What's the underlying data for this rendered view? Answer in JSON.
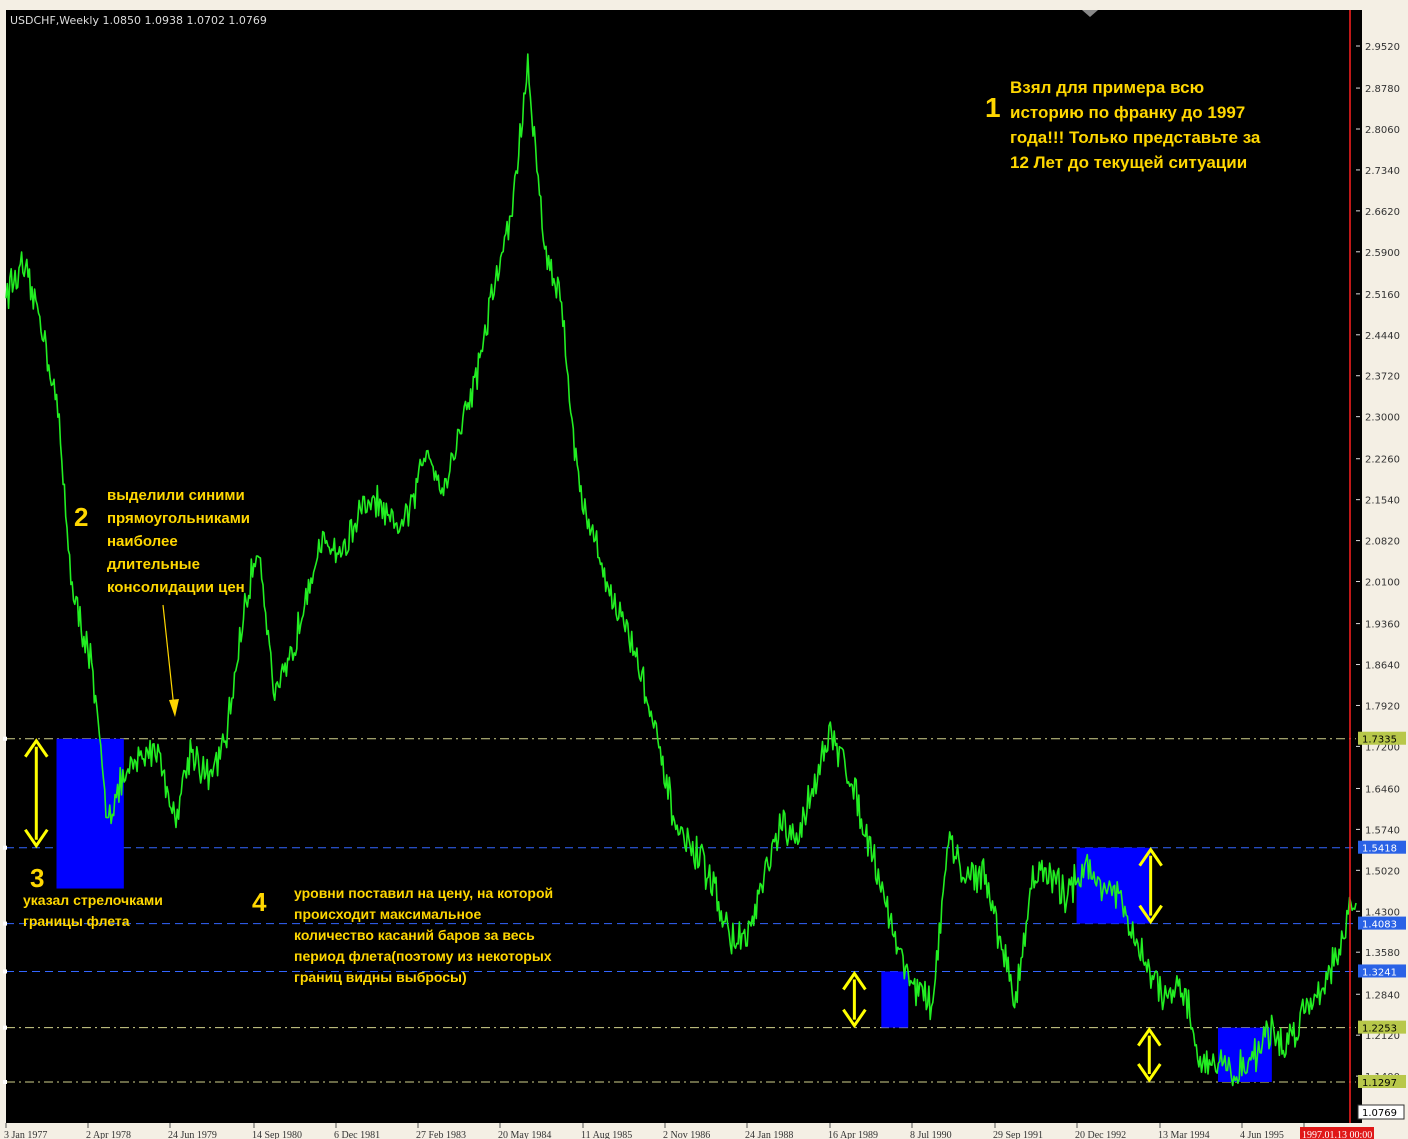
{
  "header": {
    "symbol_label": "USDCHF,Weekly  1.0850 1.0938 1.0702 1.0769"
  },
  "colors": {
    "background": "#000000",
    "price_line": "#22ee22",
    "annotation_text": "#ffd700",
    "consolidation_box": "#0000ff",
    "level_yellow": "#d2d28c",
    "level_blue": "#3366ff",
    "axis_text": "#dddddd",
    "current_line": "#ff2020",
    "last_price_box": "#ffffff"
  },
  "chart_data": {
    "type": "line",
    "title": "",
    "xlabel": "",
    "ylabel": "",
    "ylim": [
      1.0769,
      2.952
    ],
    "price_ticks": [
      "2.9520",
      "2.8780",
      "2.8060",
      "2.7340",
      "2.6620",
      "2.5900",
      "2.5160",
      "2.4440",
      "2.3720",
      "2.3000",
      "2.2260",
      "2.1540",
      "2.0820",
      "2.0100",
      "1.9360",
      "1.8640",
      "1.7920",
      "1.7200",
      "1.6460",
      "1.5740",
      "1.5020",
      "1.4300",
      "1.3580",
      "1.2840",
      "1.2120",
      "1.1400"
    ],
    "time_labels": [
      "3 Jan 1977",
      "2 Apr 1978",
      "24 Jun 1979",
      "14 Sep 1980",
      "6 Dec 1981",
      "27 Feb 1983",
      "20 May 1984",
      "11 Aug 1985",
      "2 Nov 1986",
      "24 Jan 1988",
      "16 Apr 1989",
      "8 Jul 1990",
      "29 Sep 1991",
      "20 Dec 1992",
      "13 Mar 1994",
      "4 Jun 1995",
      "1997.01.13 00:00"
    ],
    "last_price": "1.0769",
    "series": [
      {
        "x": [
          1977.0,
          1977.25,
          1977.5,
          1977.75,
          1978.0,
          1978.25,
          1978.5,
          1978.75,
          1979.0,
          1979.25,
          1979.5,
          1979.75,
          1980.0,
          1980.25,
          1980.5,
          1980.75,
          1981.0,
          1981.25,
          1981.5,
          1981.75,
          1982.0,
          1982.25,
          1982.5,
          1982.75,
          1983.0,
          1983.25,
          1983.5,
          1983.75,
          1984.0,
          1984.25,
          1984.5,
          1984.75,
          1985.0,
          1985.25,
          1985.5,
          1985.75,
          1986.0,
          1986.25,
          1986.5,
          1986.75,
          1987.0,
          1987.25,
          1987.5,
          1987.75,
          1988.0,
          1988.25,
          1988.5,
          1988.75,
          1989.0,
          1989.25,
          1989.5,
          1989.75,
          1990.0,
          1990.25,
          1990.5,
          1990.75,
          1991.0,
          1991.25,
          1991.5,
          1991.75,
          1992.0,
          1992.25,
          1992.5,
          1992.75,
          1993.0,
          1993.25,
          1993.5,
          1993.75,
          1994.0,
          1994.25,
          1994.5,
          1994.75,
          1995.0,
          1995.25,
          1995.5,
          1995.75,
          1996.0,
          1996.25,
          1996.5,
          1996.75,
          1997.0
        ],
        "values": [
          2.52,
          2.56,
          2.48,
          2.33,
          1.98,
          1.88,
          1.6,
          1.66,
          1.7,
          1.72,
          1.59,
          1.72,
          1.66,
          1.72,
          1.93,
          2.08,
          1.8,
          1.88,
          2.02,
          2.08,
          2.06,
          2.13,
          2.15,
          2.1,
          2.13,
          2.25,
          2.17,
          2.28,
          2.38,
          2.53,
          2.65,
          2.91,
          2.6,
          2.5,
          2.18,
          2.08,
          1.98,
          1.92,
          1.82,
          1.68,
          1.56,
          1.53,
          1.48,
          1.38,
          1.38,
          1.48,
          1.58,
          1.55,
          1.66,
          1.74,
          1.68,
          1.58,
          1.48,
          1.36,
          1.3,
          1.26,
          1.55,
          1.49,
          1.5,
          1.39,
          1.27,
          1.5,
          1.49,
          1.46,
          1.51,
          1.48,
          1.46,
          1.38,
          1.32,
          1.27,
          1.29,
          1.16,
          1.17,
          1.14,
          1.17,
          1.22,
          1.19,
          1.25,
          1.29,
          1.35,
          1.44
        ]
      }
    ],
    "consolidation_boxes": [
      {
        "from": "1977.75",
        "to": "1978.75",
        "high": 1.7335,
        "low": 1.47
      },
      {
        "from": "1990.0",
        "to": "1990.4",
        "high": 1.3241,
        "low": 1.2253
      },
      {
        "from": "1992.9",
        "to": "1994.0",
        "high": 1.5418,
        "low": 1.4083
      },
      {
        "from": "1995.0",
        "to": "1995.8",
        "high": 1.2253,
        "low": 1.1297
      }
    ],
    "levels": [
      {
        "value": 1.7335,
        "label": "1.7335",
        "color": "#d2d28c",
        "style": "dash-dot"
      },
      {
        "value": 1.5418,
        "label": "1.5418",
        "color": "#3366ff",
        "style": "dash"
      },
      {
        "value": 1.4083,
        "label": "1.4083",
        "color": "#3366ff",
        "style": "dash"
      },
      {
        "value": 1.3241,
        "label": "1.3241",
        "color": "#3366ff",
        "style": "dash"
      },
      {
        "value": 1.2253,
        "label": "1.2253",
        "color": "#d2d28c",
        "style": "dash-dot"
      },
      {
        "value": 1.1297,
        "label": "1.1297",
        "color": "#d2d28c",
        "style": "dash-dot"
      }
    ],
    "arrows": [
      {
        "date": 1977.45,
        "top": 1.7335,
        "bottom": 1.5418
      },
      {
        "date": 1989.6,
        "top": 1.3241,
        "bottom": 1.2253
      },
      {
        "date": 1994.0,
        "top": 1.5418,
        "bottom": 1.4083
      },
      {
        "date": 1993.98,
        "top": 1.2253,
        "bottom": 1.1297
      }
    ],
    "annotations": [
      {
        "number": "1",
        "lines": [
          "Взял для примера всю",
          "историю по франку до 1997",
          "года!!! Только представьте за",
          "12 Лет до текущей ситуации"
        ]
      },
      {
        "number": "2",
        "lines": [
          "выделили синими",
          "прямоугольниками",
          "наиболее",
          "длительные",
          "консолидации цен"
        ]
      },
      {
        "number": "3",
        "lines": [
          "указал стрелочками",
          "границы флета"
        ]
      },
      {
        "number": "4",
        "lines": [
          "уровни поставил на цену, на которой",
          "происходит максимальное",
          "количество касаний баров за весь",
          "период флета(поэтому из некоторых",
          "границ видны выбросы)"
        ]
      }
    ]
  }
}
